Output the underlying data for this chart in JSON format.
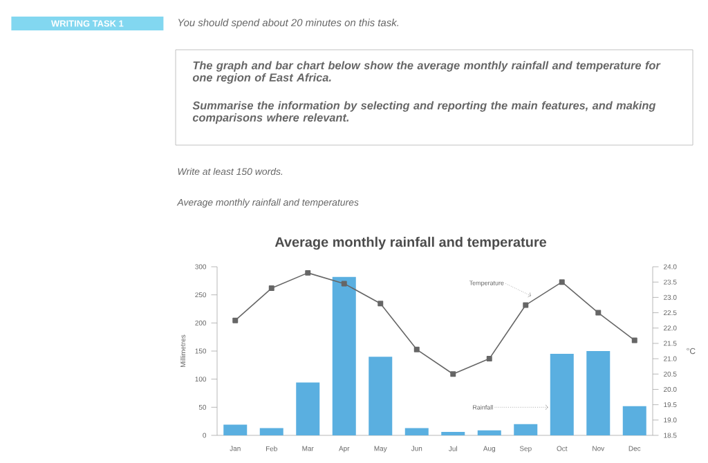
{
  "chart_data": {
    "type": "bar",
    "title": "Average monthly rainfall and temperature",
    "ylabel": "Millimetres",
    "y2label": "°C",
    "annotations": [
      "WRITING TASK 1",
      "You should spend about 20 minutes on this task.",
      "The graph and bar chart below show the average monthly rainfall and temperature for one region of East Africa.",
      "Summarise the information by selecting and reporting the main features, and making comparisons where relevant.",
      "Write at least 150 words.",
      "Average monthly rainfall and temperatures"
    ],
    "categories": [
      "Jan",
      "Feb",
      "Mar",
      "Apr",
      "May",
      "Jun",
      "Jul",
      "Aug",
      "Sep",
      "Oct",
      "Nov",
      "Dec"
    ],
    "series": [
      {
        "name": "Rainfall",
        "color": "#5aafe0",
        "values": [
          19,
          13,
          94,
          282,
          140,
          13,
          6,
          9,
          20,
          145,
          150,
          52
        ]
      },
      {
        "name": "Temperature",
        "type": "line",
        "axis": "y2",
        "color": "#666666",
        "marker": "square",
        "values": [
          22.25,
          23.3,
          23.8,
          23.45,
          22.8,
          21.3,
          20.5,
          21.0,
          22.75,
          23.5,
          22.5,
          21.6
        ]
      }
    ],
    "ylim": [
      0,
      300
    ],
    "yticks": [
      0,
      50,
      100,
      150,
      200,
      250,
      300
    ],
    "y2lim": [
      18.5,
      24.0
    ],
    "y2ticks": [
      18.5,
      {
        "value": 19,
        "label": "19.0"
      },
      19.5,
      {
        "value": 20,
        "label": "20.0"
      },
      20.5,
      {
        "value": 21,
        "label": "21.0"
      },
      21.5,
      {
        "value": 22,
        "label": "22.0"
      },
      22.5,
      {
        "value": 23,
        "label": "23.0"
      },
      23.5,
      {
        "value": 24,
        "label": "24.0"
      }
    ],
    "legend": false,
    "grid": false
  }
}
